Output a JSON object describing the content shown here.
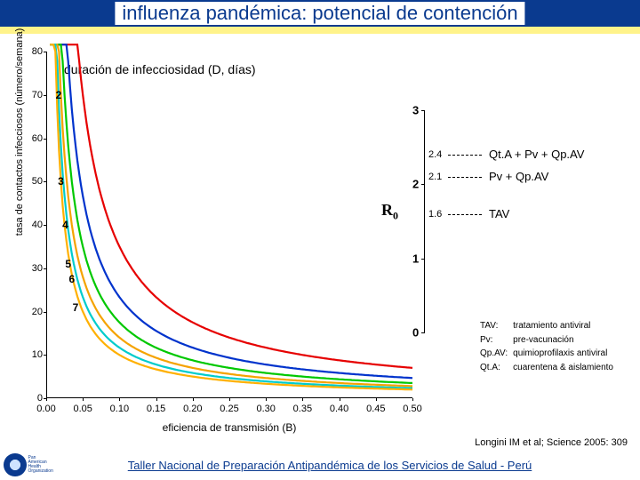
{
  "title": "influenza pandémica: potencial de contención",
  "chart": {
    "type": "line",
    "xlabel": "eficiencia de transmisión (B)",
    "ylabel": "tasa de contactos infecciosos (número/semana)",
    "xlim": [
      0,
      0.5
    ],
    "ylim": [
      0,
      80
    ],
    "yticks": [
      0,
      10,
      20,
      30,
      40,
      50,
      60,
      70,
      80
    ],
    "xticks": [
      0.0,
      0.05,
      0.1,
      0.15,
      0.2,
      0.25,
      0.3,
      0.35,
      0.4,
      0.45,
      0.5
    ],
    "label_fontsize": 11,
    "background_color": "#ffffff",
    "curves": [
      {
        "D": 2,
        "color": "#e60000",
        "width": 2.2
      },
      {
        "D": 3,
        "color": "#0033cc",
        "width": 2.2
      },
      {
        "D": 4,
        "color": "#00c800",
        "width": 2.2
      },
      {
        "D": 5,
        "color": "#f5a300",
        "width": 2.2
      },
      {
        "D": 6,
        "color": "#00cccc",
        "width": 2.2
      },
      {
        "D": 7,
        "color": "#ffb000",
        "width": 2.2
      }
    ],
    "curve_label_positions": [
      {
        "label": "2",
        "x": 0.017,
        "y": 70
      },
      {
        "label": "3",
        "x": 0.02,
        "y": 50
      },
      {
        "label": "4",
        "x": 0.026,
        "y": 40
      },
      {
        "label": "5",
        "x": 0.03,
        "y": 31
      },
      {
        "label": "6",
        "x": 0.035,
        "y": 27.5
      },
      {
        "label": "7",
        "x": 0.04,
        "y": 21
      }
    ],
    "reference_label": "duración de infecciosidad (D, días)"
  },
  "r0_panel": {
    "symbol": "R",
    "subscript": "0",
    "axis_ticks": [
      0,
      1,
      2,
      3
    ],
    "tick_labels": [
      "0",
      "1",
      "2",
      "3"
    ],
    "lines": [
      {
        "value": 2.4,
        "label": "2.4",
        "legend": "Qt.A + Pv + Qp.AV"
      },
      {
        "value": 2.1,
        "label": "2.1",
        "legend": "Pv + Qp.AV"
      },
      {
        "value": 1.6,
        "label": "1.6",
        "legend": "TAV"
      }
    ],
    "dash_color": "#000000"
  },
  "defs": [
    {
      "abbr": "TAV:",
      "text": "tratamiento antiviral"
    },
    {
      "abbr": "Pv:",
      "text": "pre-vacunación"
    },
    {
      "abbr": "Qp.AV:",
      "text": "quimioprofilaxis antiviral"
    },
    {
      "abbr": "Qt.A:",
      "text": "cuarentena & aislamiento"
    }
  ],
  "citation": "Longini IM et al; Science 2005: 309",
  "footer": "Taller Nacional de Preparación Antipandémica de los Servicios de Salud - Perú",
  "logo_text": "Pan American\nHealth\nOrganization"
}
